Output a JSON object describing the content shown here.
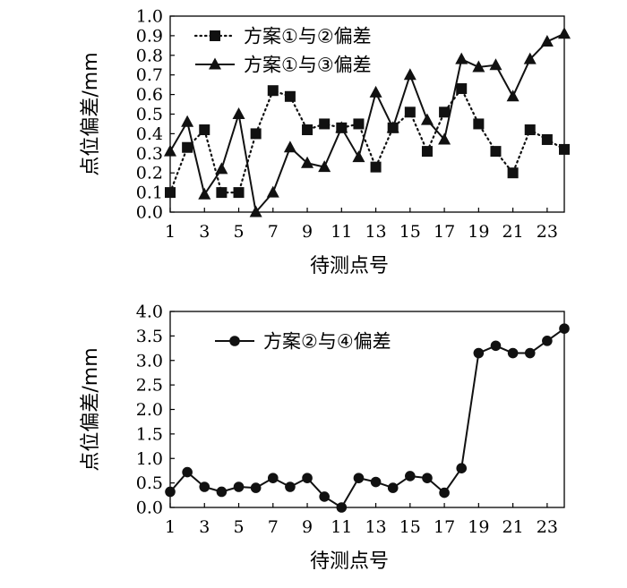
{
  "chart_data": [
    {
      "type": "line",
      "ylabel": "点位偏差/mm",
      "xlabel": "待测点号",
      "xlim": [
        1,
        24
      ],
      "ylim": [
        0.0,
        1.0
      ],
      "x_ticks": [
        "1",
        "3",
        "5",
        "7",
        "9",
        "11",
        "13",
        "15",
        "17",
        "19",
        "21",
        "23"
      ],
      "y_ticks": [
        "0.0",
        "0.1",
        "0.2",
        "0.3",
        "0.4",
        "0.5",
        "0.6",
        "0.7",
        "0.8",
        "0.9",
        "1.0"
      ],
      "legend_position": "top-left",
      "x": [
        1,
        2,
        3,
        4,
        5,
        6,
        7,
        8,
        9,
        10,
        11,
        12,
        13,
        14,
        15,
        16,
        17,
        18,
        19,
        20,
        21,
        22,
        23,
        24
      ],
      "series": [
        {
          "name": "方案①与②偏差",
          "marker": "square",
          "line_style": "dotted",
          "values": [
            0.1,
            0.33,
            0.42,
            0.1,
            0.1,
            0.4,
            0.62,
            0.59,
            0.42,
            0.45,
            0.43,
            0.45,
            0.23,
            0.43,
            0.51,
            0.31,
            0.51,
            0.63,
            0.45,
            0.31,
            0.2,
            0.42,
            0.37,
            0.32
          ]
        },
        {
          "name": "方案①与③偏差",
          "marker": "triangle",
          "line_style": "solid",
          "values": [
            0.31,
            0.46,
            0.09,
            0.22,
            0.5,
            0.0,
            0.1,
            0.33,
            0.25,
            0.23,
            0.43,
            0.28,
            0.61,
            0.43,
            0.7,
            0.47,
            0.37,
            0.78,
            0.74,
            0.75,
            0.59,
            0.78,
            0.87,
            0.91
          ]
        }
      ]
    },
    {
      "type": "line",
      "ylabel": "点位偏差/mm",
      "xlabel": "待测点号",
      "xlim": [
        1,
        24
      ],
      "ylim": [
        0.0,
        4.0
      ],
      "x_ticks": [
        "1",
        "3",
        "5",
        "7",
        "9",
        "11",
        "13",
        "15",
        "17",
        "19",
        "21",
        "23"
      ],
      "y_ticks": [
        "0.0",
        "0.5",
        "1.0",
        "1.5",
        "2.0",
        "2.5",
        "3.0",
        "3.5",
        "4.0"
      ],
      "legend_position": "top-left",
      "x": [
        1,
        2,
        3,
        4,
        5,
        6,
        7,
        8,
        9,
        10,
        11,
        12,
        13,
        14,
        15,
        16,
        17,
        18,
        19,
        20,
        21,
        22,
        23,
        24
      ],
      "series": [
        {
          "name": "方案②与④偏差",
          "marker": "circle",
          "line_style": "solid",
          "values": [
            0.32,
            0.72,
            0.42,
            0.32,
            0.42,
            0.4,
            0.6,
            0.42,
            0.6,
            0.22,
            0.0,
            0.6,
            0.52,
            0.4,
            0.64,
            0.6,
            0.3,
            0.8,
            3.15,
            3.3,
            3.15,
            3.15,
            3.4,
            3.65
          ]
        }
      ]
    }
  ]
}
